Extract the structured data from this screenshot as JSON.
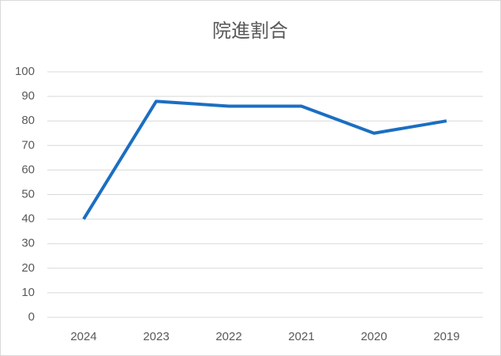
{
  "chart_data": {
    "type": "line",
    "title": "院進割合",
    "categories": [
      "2024",
      "2023",
      "2022",
      "2021",
      "2020",
      "2019"
    ],
    "values": [
      40,
      88,
      86,
      86,
      75,
      80
    ],
    "color": "#1b6ec2",
    "ylim": [
      0,
      100
    ],
    "yticks": [
      0,
      10,
      20,
      30,
      40,
      50,
      60,
      70,
      80,
      90,
      100
    ],
    "grid": true
  }
}
